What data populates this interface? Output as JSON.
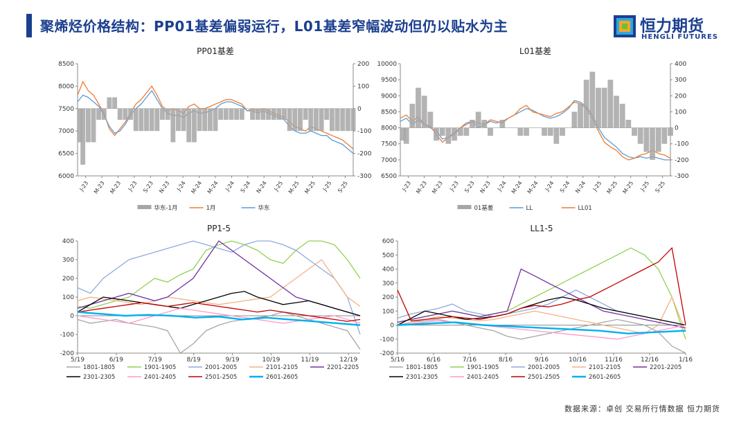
{
  "page": {
    "title": "聚烯烃价格结构：PP01基差偏弱运行，L01基差窄幅波动但仍以贴水为主",
    "logo_text": "恒力期货",
    "logo_sub": "HENGLI FUTURES",
    "source": "数据来源：卓创  交易所行情数据  恒力期货",
    "colors": {
      "brand": "#1b3f8f",
      "orange": "#ed7d31",
      "blue": "#5b9bd5",
      "gray": "#a6a6a6"
    }
  },
  "chart_data": [
    {
      "id": "pp01",
      "type": "line+bar",
      "title": "PP01基差",
      "x_ticks": [
        "J-23",
        "M-23",
        "M-23",
        "J-23",
        "S-23",
        "N-23",
        "J-24",
        "M-24",
        "M-24",
        "J-24",
        "S-24",
        "N-24",
        "J-25",
        "M-25",
        "M-25",
        "J-25",
        "S-25"
      ],
      "ylim": [
        6000,
        8500
      ],
      "yticks": [
        6000,
        6500,
        7000,
        7500,
        8000,
        8500
      ],
      "y2lim": [
        -300,
        200
      ],
      "y2ticks": [
        -300,
        -200,
        -100,
        0,
        100,
        200
      ],
      "legend": [
        "华东-1月",
        "1月",
        "华东"
      ],
      "series": [
        {
          "name": "1月",
          "axis": "left",
          "color": "#ed7d31",
          "values": [
            7800,
            8100,
            7900,
            7800,
            7600,
            7400,
            7050,
            6900,
            7050,
            7200,
            7400,
            7600,
            7700,
            7850,
            8000,
            7800,
            7550,
            7450,
            7500,
            7450,
            7400,
            7550,
            7600,
            7500,
            7500,
            7550,
            7600,
            7650,
            7700,
            7700,
            7650,
            7600,
            7450,
            7500,
            7450,
            7500,
            7450,
            7400,
            7350,
            7300,
            7200,
            7100,
            7050,
            7000,
            7100,
            7050,
            7000,
            6950,
            6900,
            6850,
            6800,
            6700,
            6600
          ]
        },
        {
          "name": "华东",
          "axis": "left",
          "color": "#5b9bd5",
          "values": [
            7650,
            7800,
            7750,
            7650,
            7550,
            7350,
            7100,
            6950,
            7000,
            7150,
            7350,
            7500,
            7600,
            7750,
            7900,
            7700,
            7500,
            7400,
            7350,
            7350,
            7300,
            7400,
            7450,
            7400,
            7400,
            7450,
            7500,
            7600,
            7650,
            7650,
            7600,
            7550,
            7450,
            7450,
            7400,
            7450,
            7400,
            7350,
            7300,
            7250,
            7100,
            7000,
            6950,
            6950,
            7000,
            6950,
            6900,
            6900,
            6800,
            6750,
            6700,
            6600,
            6500
          ]
        },
        {
          "name": "华东-1月",
          "axis": "right",
          "color": "#a6a6a6",
          "type": "bar",
          "values": [
            -150,
            -250,
            -150,
            -150,
            -50,
            -50,
            50,
            50,
            -50,
            -50,
            -50,
            -100,
            -100,
            -100,
            -100,
            -100,
            -50,
            -50,
            -150,
            -100,
            -100,
            -150,
            -150,
            -100,
            -100,
            -100,
            -100,
            -50,
            -50,
            -50,
            -50,
            -50,
            0,
            -50,
            -50,
            -50,
            -50,
            -50,
            -50,
            -50,
            -100,
            -100,
            -100,
            -50,
            -100,
            -100,
            -100,
            -50,
            -100,
            -100,
            -100,
            -100,
            -100
          ]
        }
      ]
    },
    {
      "id": "l01",
      "type": "line+bar",
      "title": "L01基差",
      "x_ticks": [
        "J-23",
        "M-23",
        "M-23",
        "J-23",
        "S-23",
        "N-23",
        "J-24",
        "M-24",
        "M-24",
        "J-24",
        "S-24",
        "N-24",
        "J-25",
        "M-25",
        "M-25",
        "J-25",
        "S-25"
      ],
      "ylim": [
        6500,
        10000
      ],
      "yticks": [
        6500,
        7000,
        7500,
        8000,
        8500,
        9000,
        9500,
        10000
      ],
      "y2lim": [
        -300,
        400
      ],
      "y2ticks": [
        -300,
        -200,
        -100,
        0,
        100,
        200,
        300,
        400
      ],
      "legend": [
        "01基差",
        "LL",
        "LL01"
      ],
      "series": [
        {
          "name": "LL",
          "axis": "left",
          "color": "#5b9bd5",
          "values": [
            8200,
            8300,
            8100,
            8250,
            8100,
            8000,
            7900,
            7650,
            7700,
            7800,
            8000,
            8150,
            8200,
            8000,
            8100,
            8200,
            8150,
            8200,
            8300,
            8400,
            8500,
            8600,
            8550,
            8450,
            8350,
            8300,
            8350,
            8450,
            8600,
            8850,
            8800,
            8650,
            8400,
            8000,
            7700,
            7550,
            7400,
            7200,
            7100,
            7050,
            7100,
            7050,
            7100,
            7050,
            7000,
            7000
          ]
        },
        {
          "name": "LL01",
          "axis": "left",
          "color": "#ed7d31",
          "values": [
            8300,
            8400,
            8200,
            8350,
            8100,
            8050,
            7800,
            7550,
            7700,
            7850,
            8000,
            8100,
            8200,
            8150,
            8100,
            8250,
            8200,
            8150,
            8300,
            8400,
            8600,
            8700,
            8500,
            8450,
            8400,
            8350,
            8450,
            8500,
            8650,
            8800,
            8750,
            8600,
            8300,
            7900,
            7550,
            7400,
            7300,
            7100,
            7000,
            7050,
            7150,
            7200,
            7300,
            7200,
            7150,
            7050
          ]
        },
        {
          "name": "01基差",
          "axis": "right",
          "color": "#a6a6a6",
          "type": "bar",
          "values": [
            -80,
            -100,
            150,
            250,
            200,
            100,
            -80,
            -50,
            -100,
            -80,
            -50,
            -50,
            50,
            100,
            50,
            -50,
            0,
            50,
            0,
            0,
            -50,
            -50,
            0,
            0,
            -50,
            -50,
            -100,
            -50,
            0,
            100,
            150,
            300,
            350,
            250,
            250,
            300,
            200,
            150,
            50,
            -50,
            -100,
            -150,
            -200,
            -150,
            -100,
            -50
          ]
        }
      ]
    },
    {
      "id": "pp15",
      "type": "line",
      "title": "PP1-5",
      "x_ticks": [
        "5/19",
        "6/19",
        "7/19",
        "8/19",
        "9/19",
        "10/19",
        "11/19",
        "12/19"
      ],
      "ylim": [
        -200,
        400
      ],
      "yticks": [
        -200,
        -100,
        0,
        100,
        200,
        300,
        400
      ],
      "legend": [
        "1801-1805",
        "1901-1905",
        "2001-2005",
        "2101-2105",
        "2201-2205",
        "2301-2305",
        "2401-2405",
        "2501-2505",
        "2601-2605"
      ],
      "series": [
        {
          "name": "1801-1805",
          "color": "#a6a6a6",
          "values": [
            -20,
            -40,
            -30,
            -20,
            -40,
            -50,
            -60,
            -80,
            -200,
            -150,
            -80,
            -50,
            -30,
            -20,
            -10,
            0,
            20,
            0,
            -20,
            -40,
            -60,
            -80,
            -180
          ]
        },
        {
          "name": "1901-1905",
          "color": "#92d050",
          "values": [
            50,
            40,
            60,
            80,
            100,
            150,
            200,
            180,
            220,
            250,
            350,
            380,
            400,
            380,
            350,
            300,
            280,
            350,
            400,
            420,
            380,
            300,
            200
          ]
        },
        {
          "name": "2001-2005",
          "color": "#8faadc",
          "values": [
            150,
            120,
            200,
            250,
            300,
            320,
            340,
            360,
            380,
            400,
            380,
            360,
            340,
            380,
            400,
            420,
            380,
            350,
            300,
            250,
            200,
            100,
            -100
          ]
        },
        {
          "name": "2101-2105",
          "color": "#f4b183",
          "values": [
            80,
            100,
            90,
            80,
            70,
            60,
            80,
            100,
            90,
            80,
            70,
            60,
            70,
            80,
            90,
            100,
            150,
            200,
            250,
            300,
            200,
            100,
            50
          ]
        },
        {
          "name": "2201-2205",
          "color": "#7030a0",
          "values": [
            40,
            60,
            80,
            100,
            120,
            100,
            80,
            100,
            150,
            200,
            300,
            400,
            350,
            300,
            250,
            200,
            150,
            100,
            80,
            60,
            40,
            20,
            0
          ]
        },
        {
          "name": "2301-2305",
          "color": "#000000",
          "values": [
            20,
            60,
            100,
            90,
            80,
            70,
            60,
            50,
            40,
            60,
            80,
            100,
            120,
            130,
            100,
            80,
            60,
            70,
            80,
            60,
            40,
            20,
            0
          ]
        },
        {
          "name": "2401-2405",
          "color": "#ff99cc",
          "values": [
            0,
            -10,
            -20,
            -30,
            -40,
            -20,
            0,
            20,
            40,
            30,
            20,
            10,
            0,
            -10,
            -20,
            -30,
            -40,
            -30,
            -20,
            -10,
            0,
            -20,
            -40
          ]
        },
        {
          "name": "2501-2505",
          "color": "#c00000",
          "values": [
            20,
            30,
            40,
            50,
            60,
            70,
            60,
            50,
            60,
            70,
            60,
            50,
            40,
            30,
            20,
            30,
            20,
            10,
            0,
            -10,
            -20,
            -30,
            -20
          ]
        },
        {
          "name": "2601-2605",
          "color": "#00b0f0",
          "values": [
            20,
            10,
            0,
            5,
            0,
            -10,
            -5,
            -20,
            -10,
            -20,
            -30,
            -40,
            -50
          ]
        }
      ]
    },
    {
      "id": "ll15",
      "type": "line",
      "title": "LL1-5",
      "x_ticks": [
        "5/16",
        "6/16",
        "7/16",
        "8/16",
        "9/16",
        "10/16",
        "11/16",
        "12/16",
        "1/16"
      ],
      "ylim": [
        -200,
        600
      ],
      "yticks": [
        -200,
        -100,
        0,
        100,
        200,
        300,
        400,
        500,
        600
      ],
      "legend": [
        "1801-1805",
        "1901-1905",
        "2001-2005",
        "2101-2105",
        "2201-2205",
        "2301-2305",
        "2401-2405",
        "2501-2505",
        "2601-2605"
      ],
      "series": [
        {
          "name": "1801-1805",
          "color": "#a6a6a6",
          "values": [
            0,
            20,
            30,
            40,
            20,
            0,
            -20,
            -40,
            -80,
            -100,
            -80,
            -60,
            -40,
            -20,
            0,
            20,
            40,
            20,
            0,
            -50,
            -150,
            -200
          ]
        },
        {
          "name": "1901-1905",
          "color": "#92d050",
          "values": [
            20,
            40,
            60,
            80,
            100,
            80,
            60,
            80,
            100,
            150,
            200,
            250,
            300,
            350,
            400,
            450,
            500,
            550,
            500,
            400,
            200,
            -100
          ]
        },
        {
          "name": "2001-2005",
          "color": "#8faadc",
          "values": [
            50,
            80,
            100,
            120,
            150,
            100,
            80,
            60,
            80,
            100,
            120,
            150,
            200,
            250,
            200,
            150,
            100,
            80,
            60,
            40,
            20,
            0
          ]
        },
        {
          "name": "2101-2105",
          "color": "#f4b183",
          "values": [
            0,
            20,
            40,
            60,
            50,
            40,
            30,
            40,
            60,
            80,
            100,
            80,
            60,
            40,
            20,
            0,
            -20,
            -40,
            -60,
            0,
            200,
            -50
          ]
        },
        {
          "name": "2201-2205",
          "color": "#7030a0",
          "values": [
            20,
            40,
            60,
            80,
            100,
            80,
            60,
            80,
            100,
            400,
            350,
            300,
            250,
            200,
            150,
            100,
            80,
            60,
            40,
            20,
            0,
            -20
          ]
        },
        {
          "name": "2301-2305",
          "color": "#000000",
          "values": [
            0,
            50,
            100,
            80,
            60,
            40,
            50,
            60,
            80,
            120,
            150,
            180,
            200,
            180,
            150,
            120,
            100,
            80,
            60,
            40,
            20,
            0
          ]
        },
        {
          "name": "2401-2405",
          "color": "#ff99cc",
          "values": [
            0,
            10,
            20,
            30,
            20,
            10,
            0,
            -10,
            -20,
            -30,
            -40,
            -50,
            -60,
            -70,
            -80,
            -90,
            -100,
            -80,
            -60,
            -40,
            -20,
            0
          ]
        },
        {
          "name": "2501-2505",
          "color": "#c00000",
          "values": [
            250,
            30,
            40,
            50,
            60,
            50,
            40,
            60,
            80,
            120,
            140,
            130,
            150,
            180,
            200,
            250,
            300,
            350,
            400,
            450,
            550,
            0
          ]
        },
        {
          "name": "2601-2605",
          "color": "#00b0f0",
          "values": [
            0,
            10,
            20,
            0,
            -10,
            -20,
            -30,
            -40,
            -60,
            -50,
            -40
          ]
        }
      ]
    }
  ]
}
